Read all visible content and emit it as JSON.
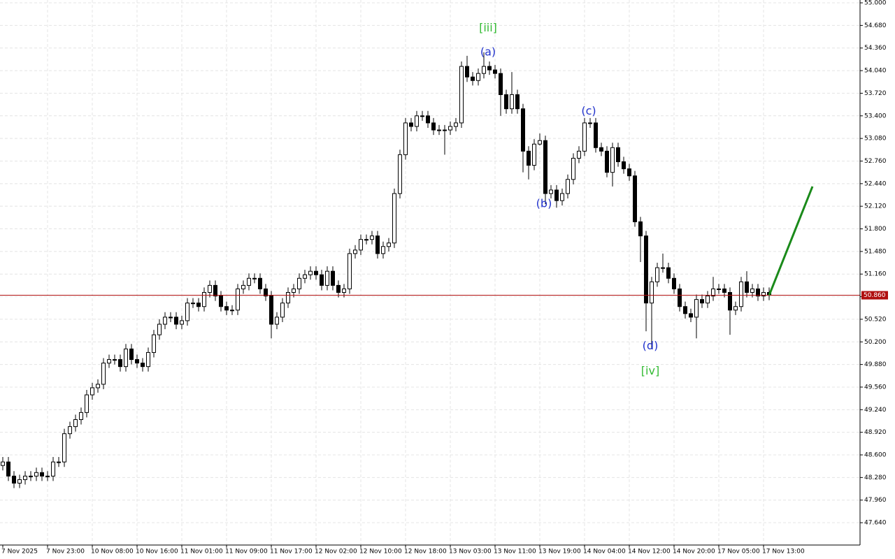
{
  "chart_data": {
    "type": "candlestick",
    "ohlc": [
      [
        48.45,
        48.57,
        48.38,
        48.5
      ],
      [
        48.5,
        48.57,
        48.23,
        48.3
      ],
      [
        48.3,
        48.37,
        48.13,
        48.2
      ],
      [
        48.2,
        48.32,
        48.13,
        48.25
      ],
      [
        48.25,
        48.37,
        48.18,
        48.3
      ],
      [
        48.3,
        48.37,
        48.23,
        48.3
      ],
      [
        48.3,
        48.42,
        48.23,
        48.35
      ],
      [
        48.35,
        48.42,
        48.23,
        48.3
      ],
      [
        48.3,
        48.37,
        48.23,
        48.3
      ],
      [
        48.3,
        48.57,
        48.23,
        48.5
      ],
      [
        48.5,
        48.57,
        48.43,
        48.5
      ],
      [
        48.5,
        48.97,
        48.43,
        48.9
      ],
      [
        48.9,
        49.07,
        48.83,
        49.0
      ],
      [
        49.0,
        49.17,
        48.93,
        49.1
      ],
      [
        49.1,
        49.27,
        49.03,
        49.2
      ],
      [
        49.2,
        49.52,
        49.13,
        49.45
      ],
      [
        49.45,
        49.62,
        49.38,
        49.55
      ],
      [
        49.55,
        49.67,
        49.48,
        49.6
      ],
      [
        49.6,
        49.97,
        49.53,
        49.9
      ],
      [
        49.9,
        50.02,
        49.83,
        49.95
      ],
      [
        49.95,
        50.02,
        49.88,
        49.95
      ],
      [
        49.95,
        50.02,
        49.78,
        49.85
      ],
      [
        49.85,
        50.17,
        49.78,
        50.1
      ],
      [
        50.1,
        50.17,
        49.88,
        49.95
      ],
      [
        49.95,
        50.02,
        49.83,
        49.9
      ],
      [
        49.9,
        49.97,
        49.78,
        49.85
      ],
      [
        49.85,
        50.12,
        49.78,
        50.05
      ],
      [
        50.05,
        50.37,
        49.98,
        50.3
      ],
      [
        50.3,
        50.52,
        50.23,
        50.45
      ],
      [
        50.45,
        50.62,
        50.38,
        50.55
      ],
      [
        50.55,
        50.62,
        50.48,
        50.55
      ],
      [
        50.55,
        50.62,
        50.38,
        50.45
      ],
      [
        50.45,
        50.57,
        50.38,
        50.5
      ],
      [
        50.5,
        50.82,
        50.43,
        50.75
      ],
      [
        50.75,
        50.82,
        50.68,
        50.75
      ],
      [
        50.75,
        50.82,
        50.63,
        50.7
      ],
      [
        50.7,
        50.97,
        50.63,
        50.9
      ],
      [
        50.9,
        51.07,
        50.83,
        51.0
      ],
      [
        51.0,
        51.07,
        50.78,
        50.85
      ],
      [
        50.85,
        50.92,
        50.63,
        50.7
      ],
      [
        50.7,
        50.77,
        50.58,
        50.65
      ],
      [
        50.65,
        50.72,
        50.58,
        50.65
      ],
      [
        50.65,
        51.02,
        50.58,
        50.95
      ],
      [
        50.95,
        51.07,
        50.88,
        51.0
      ],
      [
        51.0,
        51.17,
        50.93,
        51.1
      ],
      [
        51.1,
        51.17,
        51.03,
        51.1
      ],
      [
        51.1,
        51.17,
        50.88,
        50.95
      ],
      [
        50.95,
        51.02,
        50.78,
        50.85
      ],
      [
        50.85,
        50.92,
        50.25,
        50.45
      ],
      [
        50.45,
        50.62,
        50.38,
        50.55
      ],
      [
        50.55,
        50.82,
        50.48,
        50.75
      ],
      [
        50.75,
        50.97,
        50.68,
        50.9
      ],
      [
        50.9,
        51.02,
        50.83,
        50.95
      ],
      [
        50.95,
        51.17,
        50.88,
        51.1
      ],
      [
        51.1,
        51.22,
        51.03,
        51.15
      ],
      [
        51.15,
        51.27,
        51.08,
        51.2
      ],
      [
        51.2,
        51.27,
        51.08,
        51.15
      ],
      [
        51.15,
        51.22,
        50.93,
        51.0
      ],
      [
        51.0,
        51.27,
        50.93,
        51.2
      ],
      [
        51.2,
        51.27,
        50.93,
        51.0
      ],
      [
        51.0,
        51.07,
        50.83,
        50.9
      ],
      [
        50.9,
        51.02,
        50.83,
        50.95
      ],
      [
        50.95,
        51.52,
        50.88,
        51.45
      ],
      [
        51.45,
        51.57,
        51.38,
        51.5
      ],
      [
        51.5,
        51.72,
        51.43,
        51.65
      ],
      [
        51.65,
        51.72,
        51.58,
        51.65
      ],
      [
        51.65,
        51.77,
        51.58,
        51.7
      ],
      [
        51.7,
        51.77,
        51.38,
        51.45
      ],
      [
        51.45,
        51.62,
        51.38,
        51.55
      ],
      [
        51.55,
        51.67,
        51.48,
        51.6
      ],
      [
        51.6,
        52.37,
        51.53,
        52.3
      ],
      [
        52.3,
        52.92,
        52.23,
        52.85
      ],
      [
        52.85,
        53.37,
        52.78,
        53.3
      ],
      [
        53.3,
        53.37,
        53.18,
        53.25
      ],
      [
        53.25,
        53.47,
        53.18,
        53.4
      ],
      [
        53.4,
        53.47,
        53.33,
        53.4
      ],
      [
        53.4,
        53.47,
        53.23,
        53.3
      ],
      [
        53.3,
        53.37,
        53.13,
        53.2
      ],
      [
        53.2,
        53.27,
        53.13,
        53.2
      ],
      [
        53.2,
        53.27,
        52.85,
        53.2
      ],
      [
        53.2,
        53.32,
        53.13,
        53.25
      ],
      [
        53.25,
        53.37,
        53.18,
        53.3
      ],
      [
        53.3,
        54.17,
        53.23,
        54.1
      ],
      [
        54.1,
        54.25,
        53.88,
        53.95
      ],
      [
        53.95,
        54.02,
        53.83,
        53.9
      ],
      [
        53.9,
        54.07,
        53.83,
        54.0
      ],
      [
        54.0,
        54.3,
        53.93,
        54.1
      ],
      [
        54.1,
        54.17,
        53.98,
        54.05
      ],
      [
        54.05,
        54.12,
        53.93,
        54.0
      ],
      [
        54.0,
        54.07,
        53.4,
        53.7
      ],
      [
        53.7,
        53.77,
        53.43,
        53.5
      ],
      [
        53.5,
        54.02,
        53.43,
        53.7
      ],
      [
        53.7,
        53.77,
        53.43,
        53.5
      ],
      [
        53.5,
        53.57,
        52.6,
        52.9
      ],
      [
        52.9,
        52.97,
        52.5,
        52.7
      ],
      [
        52.7,
        53.07,
        52.63,
        53.0
      ],
      [
        53.0,
        53.15,
        52.98,
        53.05
      ],
      [
        53.05,
        53.12,
        52.15,
        52.3
      ],
      [
        52.3,
        52.42,
        52.23,
        52.35
      ],
      [
        52.35,
        52.42,
        52.1,
        52.2
      ],
      [
        52.2,
        52.37,
        52.13,
        52.3
      ],
      [
        52.3,
        52.57,
        52.23,
        52.5
      ],
      [
        52.5,
        52.87,
        52.43,
        52.8
      ],
      [
        52.8,
        52.97,
        52.73,
        52.9
      ],
      [
        52.9,
        53.37,
        52.83,
        53.3
      ],
      [
        53.3,
        53.37,
        53.23,
        53.3
      ],
      [
        53.3,
        53.37,
        52.88,
        52.95
      ],
      [
        52.95,
        53.02,
        52.83,
        52.9
      ],
      [
        52.9,
        52.97,
        52.53,
        52.6
      ],
      [
        52.6,
        53.02,
        52.4,
        52.95
      ],
      [
        52.95,
        53.02,
        52.68,
        52.75
      ],
      [
        52.75,
        52.82,
        52.58,
        52.65
      ],
      [
        52.65,
        52.72,
        52.48,
        52.55
      ],
      [
        52.55,
        52.62,
        51.83,
        51.9
      ],
      [
        51.9,
        51.97,
        51.33,
        51.7
      ],
      [
        51.7,
        51.77,
        50.35,
        50.75
      ],
      [
        50.75,
        51.12,
        50.1,
        51.05
      ],
      [
        51.05,
        51.32,
        50.98,
        51.25
      ],
      [
        51.25,
        51.45,
        51.18,
        51.25
      ],
      [
        51.25,
        51.32,
        51.03,
        51.1
      ],
      [
        51.1,
        51.17,
        50.88,
        50.95
      ],
      [
        50.95,
        51.02,
        50.63,
        50.7
      ],
      [
        50.7,
        50.77,
        50.53,
        50.6
      ],
      [
        50.6,
        50.67,
        50.48,
        50.55
      ],
      [
        50.55,
        50.87,
        50.25,
        50.8
      ],
      [
        50.8,
        50.87,
        50.68,
        50.75
      ],
      [
        50.75,
        50.92,
        50.68,
        50.85
      ],
      [
        50.85,
        51.12,
        50.78,
        50.95
      ],
      [
        50.95,
        51.02,
        50.88,
        50.95
      ],
      [
        50.95,
        51.02,
        50.83,
        50.9
      ],
      [
        50.9,
        50.97,
        50.3,
        50.65
      ],
      [
        50.65,
        50.77,
        50.58,
        50.7
      ],
      [
        50.7,
        51.12,
        50.63,
        51.05
      ],
      [
        51.05,
        51.2,
        50.83,
        50.9
      ],
      [
        50.9,
        51.02,
        50.83,
        50.95
      ],
      [
        50.95,
        51.02,
        50.78,
        50.85
      ],
      [
        50.85,
        50.97,
        50.78,
        50.9
      ],
      [
        50.9,
        50.97,
        50.79,
        50.86
      ]
    ],
    "categories": [
      "7 Nov 2025",
      null,
      null,
      null,
      null,
      null,
      null,
      null,
      "7 Nov 23:00",
      null,
      null,
      null,
      null,
      null,
      null,
      null,
      "10 Nov 08:00",
      null,
      null,
      null,
      null,
      null,
      null,
      null,
      "10 Nov 16:00",
      null,
      null,
      null,
      null,
      null,
      null,
      null,
      "11 Nov 01:00",
      null,
      null,
      null,
      null,
      null,
      null,
      null,
      "11 Nov 09:00",
      null,
      null,
      null,
      null,
      null,
      null,
      null,
      "11 Nov 17:00",
      null,
      null,
      null,
      null,
      null,
      null,
      null,
      "12 Nov 02:00",
      null,
      null,
      null,
      null,
      null,
      null,
      null,
      "12 Nov 10:00",
      null,
      null,
      null,
      null,
      null,
      null,
      null,
      "12 Nov 18:00",
      null,
      null,
      null,
      null,
      null,
      null,
      null,
      "13 Nov 03:00",
      null,
      null,
      null,
      null,
      null,
      null,
      null,
      "13 Nov 11:00",
      null,
      null,
      null,
      null,
      null,
      null,
      null,
      "13 Nov 19:00",
      null,
      null,
      null,
      null,
      null,
      null,
      null,
      "14 Nov 04:00",
      null,
      null,
      null,
      null,
      null,
      null,
      null,
      "14 Nov 12:00",
      null,
      null,
      null,
      null,
      null,
      null,
      null,
      "14 Nov 20:00",
      null,
      null,
      null,
      null,
      null,
      null,
      null,
      "17 Nov 05:00",
      null,
      null,
      null,
      null,
      null,
      null,
      null,
      "17 Nov 13:00",
      null
    ],
    "ylim": [
      47.324,
      55.04
    ],
    "yticks": [
      {
        "value": 47.64,
        "label": "47.640"
      },
      {
        "value": 47.96,
        "label": "47.960"
      },
      {
        "value": 48.28,
        "label": "48.280"
      },
      {
        "value": 48.6,
        "label": "48.600"
      },
      {
        "value": 48.92,
        "label": "48.920"
      },
      {
        "value": 49.24,
        "label": "49.240"
      },
      {
        "value": 49.56,
        "label": "49.560"
      },
      {
        "value": 49.88,
        "label": "49.880"
      },
      {
        "value": 50.2,
        "label": "50.200"
      },
      {
        "value": 50.52,
        "label": "50.520"
      },
      {
        "value": 50.84,
        "label": "50.840"
      },
      {
        "value": 51.16,
        "label": "51.160"
      },
      {
        "value": 51.48,
        "label": "51.480"
      },
      {
        "value": 51.8,
        "label": "51.800"
      },
      {
        "value": 52.12,
        "label": "52.120"
      },
      {
        "value": 52.44,
        "label": "52.440"
      },
      {
        "value": 52.76,
        "label": "52.760"
      },
      {
        "value": 53.08,
        "label": "53.080"
      },
      {
        "value": 53.4,
        "label": "53.400"
      },
      {
        "value": 53.72,
        "label": "53.720"
      },
      {
        "value": 54.04,
        "label": "54.040"
      },
      {
        "value": 54.36,
        "label": "54.360"
      },
      {
        "value": 54.68,
        "label": "54.680"
      },
      {
        "value": 55.0,
        "label": "55.000"
      }
    ],
    "grid": true,
    "up_color": "#ffffff",
    "down_color": "#000000",
    "price_line": {
      "value": 50.86,
      "label": "50.860",
      "color": "#b01010"
    },
    "annotations": [
      {
        "text": "[iii]",
        "x": 86.75,
        "y": 54.64,
        "color": "#33bb33"
      },
      {
        "text": "(a)",
        "x": 86.75,
        "y": 54.3,
        "color": "#2233cc"
      },
      {
        "text": "(b)",
        "x": 96.75,
        "y": 52.15,
        "color": "#2233cc"
      },
      {
        "text": "(c)",
        "x": 104.75,
        "y": 53.46,
        "color": "#2233cc"
      },
      {
        "text": "(d)",
        "x": 115.75,
        "y": 50.14,
        "color": "#2233cc"
      },
      {
        "text": "[iv]",
        "x": 115.75,
        "y": 49.78,
        "color": "#33bb33"
      }
    ],
    "forecast": {
      "x": [
        137,
        144.75
      ],
      "y": [
        50.86,
        52.4
      ],
      "color": "#1a8a1a"
    }
  }
}
